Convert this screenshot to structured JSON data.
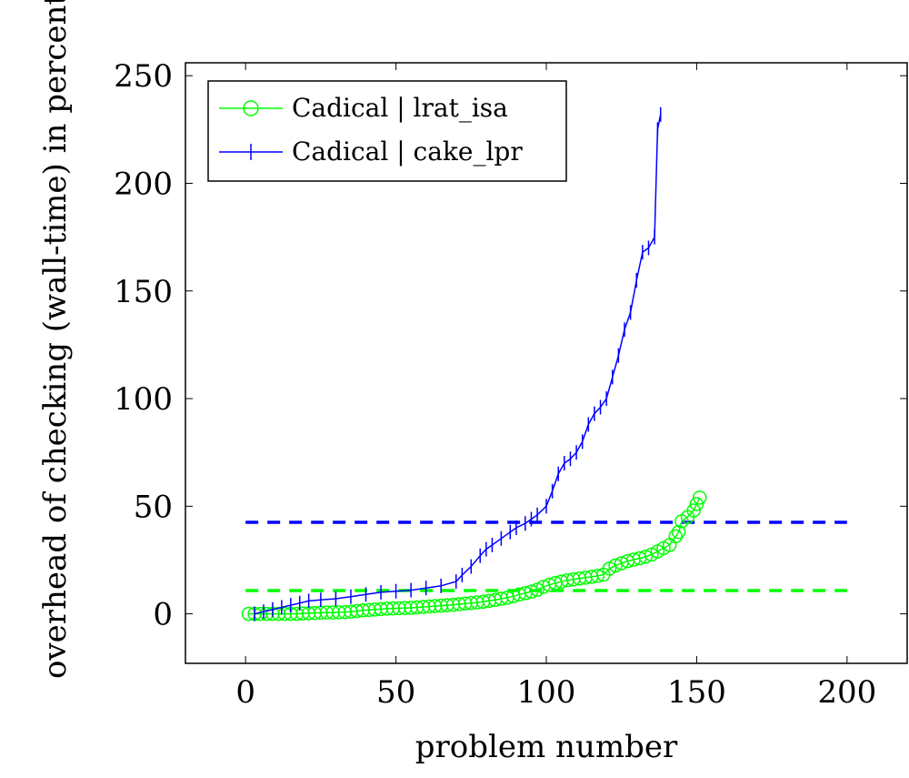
{
  "chart_data": {
    "type": "line",
    "title": "",
    "xlabel": "problem number",
    "ylabel": "overhead of checking (wall-time) in percent",
    "xlim": [
      -20,
      220
    ],
    "ylim": [
      -23,
      256
    ],
    "xticks": [
      0,
      50,
      100,
      150,
      200
    ],
    "yticks": [
      0,
      50,
      100,
      150,
      200,
      250
    ],
    "grid": false,
    "legend_position": "top-left",
    "series": [
      {
        "name": "Cadical | lrat_isa",
        "color": "#00ff00",
        "marker": "circle",
        "x": [
          1,
          3,
          5,
          7,
          9,
          11,
          13,
          15,
          17,
          19,
          21,
          23,
          25,
          27,
          29,
          31,
          33,
          35,
          37,
          39,
          41,
          43,
          45,
          47,
          49,
          51,
          53,
          55,
          57,
          59,
          61,
          63,
          65,
          67,
          69,
          71,
          73,
          75,
          77,
          79,
          81,
          83,
          85,
          87,
          89,
          91,
          93,
          95,
          97,
          99,
          101,
          103,
          105,
          107,
          109,
          111,
          113,
          115,
          117,
          119,
          121,
          123,
          125,
          127,
          129,
          131,
          133,
          135,
          137,
          139,
          141,
          143,
          144,
          145,
          147,
          149,
          150,
          151
        ],
        "y": [
          0,
          0,
          0,
          0,
          0,
          0,
          0,
          0,
          0,
          0.2,
          0.3,
          0.4,
          0.5,
          0.6,
          0.6,
          0.7,
          0.8,
          1.0,
          1.3,
          1.6,
          1.8,
          2.0,
          2.2,
          2.4,
          2.5,
          2.6,
          2.7,
          2.8,
          3.0,
          3.2,
          3.4,
          3.6,
          3.8,
          4.0,
          4.2,
          4.5,
          4.8,
          5.0,
          5.3,
          5.6,
          6.0,
          6.5,
          7.0,
          7.5,
          8.2,
          9.0,
          9.6,
          10.3,
          11.2,
          12.5,
          13.5,
          14.3,
          15.0,
          15.6,
          16.0,
          16.4,
          16.8,
          17.2,
          17.6,
          18.2,
          21.0,
          22.5,
          23.5,
          24.5,
          25.2,
          25.8,
          26.5,
          27.5,
          29.0,
          30.5,
          32.0,
          36.0,
          38.0,
          43.0,
          45.0,
          48.0,
          51.0,
          54.0
        ]
      },
      {
        "name": "Cadical | cake_lpr",
        "color": "#0000ff",
        "marker": "vertical-bar",
        "x": [
          3,
          6,
          9,
          12,
          15,
          18,
          21,
          25,
          30,
          35,
          40,
          45,
          50,
          55,
          60,
          65,
          70,
          72,
          75,
          78,
          80,
          82,
          85,
          88,
          90,
          93,
          95,
          97,
          100,
          102,
          104,
          106,
          108,
          110,
          112,
          114,
          116,
          118,
          120,
          122,
          124,
          126,
          128,
          130,
          132,
          134,
          136,
          137,
          138
        ],
        "y": [
          0,
          1,
          2,
          3,
          4,
          5,
          6,
          6.5,
          7,
          8,
          9,
          10,
          10.5,
          11,
          12,
          13,
          15,
          18,
          22,
          27,
          30,
          32,
          35,
          38,
          40,
          42,
          44,
          46,
          50,
          57,
          65,
          70,
          72,
          75,
          80,
          88,
          93,
          96,
          100,
          110,
          120,
          132,
          140,
          155,
          168,
          170,
          175,
          225,
          232
        ]
      }
    ],
    "reference_lines": [
      {
        "series": "Cadical | cake_lpr",
        "y": 42.5,
        "x_range": [
          0,
          200
        ],
        "color": "#0000ff",
        "style": "dashed"
      },
      {
        "series": "Cadical | lrat_isa",
        "y": 10.8,
        "x_range": [
          0,
          200
        ],
        "color": "#00ff00",
        "style": "dashed"
      }
    ]
  }
}
